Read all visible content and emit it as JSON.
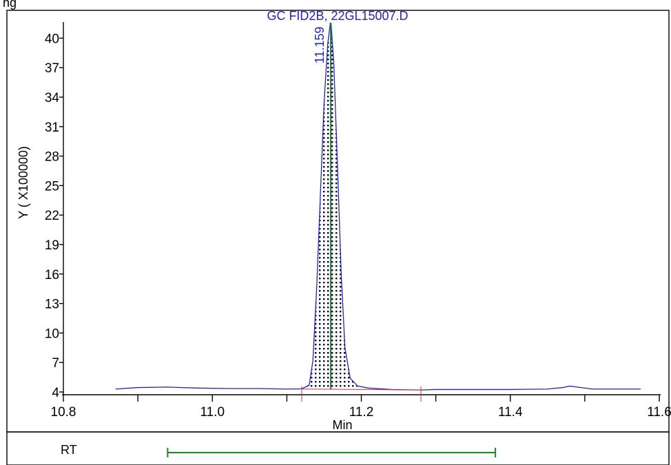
{
  "header": {
    "clipped_text": "ng"
  },
  "chart_data": {
    "type": "line",
    "title": "GC FID2B, 22GL15007.D",
    "xlabel": "Min",
    "ylabel": "Y ( X100000)",
    "xlim": [
      10.8,
      11.6
    ],
    "ylim": [
      4,
      41.5
    ],
    "x_ticks": [
      10.8,
      11.0,
      11.2,
      11.4,
      11.6
    ],
    "x_tick_labels": [
      "10.8",
      "11.0",
      "11.2",
      "11.4",
      "11.6"
    ],
    "y_ticks": [
      4,
      7,
      10,
      13,
      16,
      19,
      22,
      25,
      28,
      31,
      34,
      37,
      40
    ],
    "y_tick_labels": [
      "4",
      "7",
      "10",
      "13",
      "16",
      "19",
      "22",
      "25",
      "28",
      "31",
      "34",
      "37",
      "40"
    ],
    "grid": false,
    "colors": {
      "trace": "#2020e0",
      "peak_marker": "#1a7a1a",
      "baseline": "#e03030",
      "integration_fill": "#000050",
      "rt_window": "#1a8a1a",
      "text": "#2020e0"
    },
    "series": [
      {
        "x": [
          10.87,
          10.9,
          10.94,
          10.98,
          11.02,
          11.06,
          11.1,
          11.12,
          11.13,
          11.135,
          11.14,
          11.145,
          11.15,
          11.155,
          11.159,
          11.163,
          11.168,
          11.173,
          11.178,
          11.185,
          11.195,
          11.21,
          11.24,
          11.28,
          11.3,
          11.35,
          11.4,
          11.45,
          11.47,
          11.48,
          11.49,
          11.51,
          11.55,
          11.575
        ],
        "y": [
          4.3,
          4.45,
          4.5,
          4.4,
          4.35,
          4.35,
          4.3,
          4.32,
          4.7,
          7.2,
          14.5,
          24,
          33.5,
          39.5,
          41.9,
          37.5,
          27,
          16,
          8.5,
          5.4,
          4.6,
          4.4,
          4.25,
          4.2,
          4.25,
          4.25,
          4.25,
          4.3,
          4.45,
          4.6,
          4.5,
          4.3,
          4.3,
          4.3
        ]
      }
    ],
    "peak": {
      "label": "11.159",
      "rt": 11.159,
      "height": 41.9,
      "integration_start": 11.12,
      "integration_end": 11.28
    },
    "rt_window": {
      "label": "RT",
      "start": 10.94,
      "end": 11.38
    }
  }
}
